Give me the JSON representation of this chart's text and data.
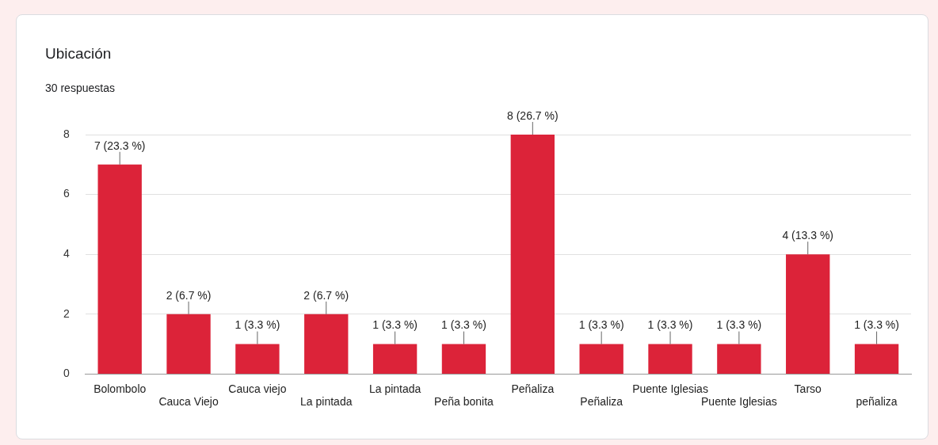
{
  "chart_data": {
    "type": "bar",
    "title": "Ubicación",
    "subtitle": "30 respuestas",
    "categories": [
      "Bolombolo",
      "Cauca Viejo",
      "Cauca viejo",
      "La pintada",
      "La pintada",
      "Peña bonita",
      "Peñaliza",
      "Peñaliza",
      "Puente Iglesias",
      "Puente Iglesias",
      "Tarso",
      "peñaliza"
    ],
    "values": [
      7,
      2,
      1,
      2,
      1,
      1,
      8,
      1,
      1,
      1,
      4,
      1
    ],
    "value_labels": [
      "7 (23.3 %)",
      "2 (6.7 %)",
      "1 (3.3 %)",
      "2 (6.7 %)",
      "1 (3.3 %)",
      "1 (3.3 %)",
      "8 (26.7 %)",
      "1 (3.3 %)",
      "1 (3.3 %)",
      "1 (3.3 %)",
      "4 (13.3 %)",
      "1 (3.3 %)"
    ],
    "color": "#dc2339",
    "ylim": [
      0,
      8
    ],
    "yticks": [
      0,
      2,
      4,
      6,
      8
    ],
    "grid": "y",
    "legend": false
  }
}
